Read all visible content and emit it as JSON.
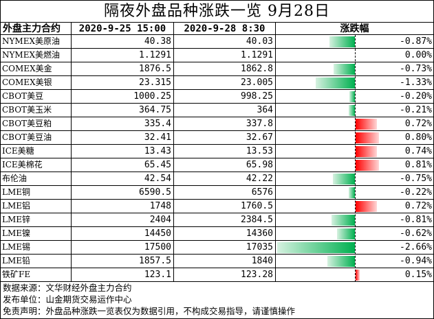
{
  "title": "隔夜外盘品种涨跌一览 9月28日",
  "headers": {
    "contract": "外盘主力合约",
    "time1": "2020-9-25 15:00",
    "time2": "2020-9-28 8:30",
    "change": "涨跌幅"
  },
  "colors": {
    "up": "#ff0000",
    "down": "#00b050"
  },
  "rows": [
    {
      "name": "NYMEX美原油",
      "v1": "40.38",
      "v2": "40.03",
      "pct": "-0.87%",
      "value": -0.87
    },
    {
      "name": "NYMEX美燃油",
      "v1": "1.1291",
      "v2": "1.1291",
      "pct": "0.00%",
      "value": 0.0
    },
    {
      "name": "COMEX美金",
      "v1": "1876.5",
      "v2": "1862.8",
      "pct": "-0.73%",
      "value": -0.73
    },
    {
      "name": "COMEX美银",
      "v1": "23.315",
      "v2": "23.005",
      "pct": "-1.33%",
      "value": -1.33
    },
    {
      "name": "CBOT美豆",
      "v1": "1000.25",
      "v2": "998.25",
      "pct": "-0.20%",
      "value": -0.2
    },
    {
      "name": "CBOT美玉米",
      "v1": "364.75",
      "v2": "364",
      "pct": "-0.21%",
      "value": -0.21
    },
    {
      "name": "CBOT美豆粕",
      "v1": "335.4",
      "v2": "337.8",
      "pct": "0.72%",
      "value": 0.72
    },
    {
      "name": "CBOT美豆油",
      "v1": "32.41",
      "v2": "32.67",
      "pct": "0.80%",
      "value": 0.8
    },
    {
      "name": "ICE美糖",
      "v1": "13.43",
      "v2": "13.53",
      "pct": "0.74%",
      "value": 0.74
    },
    {
      "name": "ICE美棉花",
      "v1": "65.45",
      "v2": "65.98",
      "pct": "0.81%",
      "value": 0.81
    },
    {
      "name": "布伦油",
      "v1": "42.54",
      "v2": "42.22",
      "pct": "-0.75%",
      "value": -0.75
    },
    {
      "name": "LME铜",
      "v1": "6590.5",
      "v2": "6576",
      "pct": "-0.22%",
      "value": -0.22
    },
    {
      "name": "LME铝",
      "v1": "1748",
      "v2": "1760.5",
      "pct": "0.72%",
      "value": 0.72
    },
    {
      "name": "LME锌",
      "v1": "2404",
      "v2": "2384.5",
      "pct": "-0.81%",
      "value": -0.81
    },
    {
      "name": "LME镍",
      "v1": "14450",
      "v2": "14360",
      "pct": "-0.62%",
      "value": -0.62
    },
    {
      "name": "LME锡",
      "v1": "17500",
      "v2": "17035",
      "pct": "-2.66%",
      "value": -2.66
    },
    {
      "name": "LME铅",
      "v1": "1857.5",
      "v2": "1840",
      "pct": "-0.94%",
      "value": -0.94
    },
    {
      "name": "铁矿FE",
      "v1": "123.1",
      "v2": "123.28",
      "pct": "0.15%",
      "value": 0.15
    }
  ],
  "footer": {
    "source": "数据来源：文华财经外盘主力合约",
    "publisher": "发布单位：山金期货交易运作中心",
    "disclaimer": "免责声明：外盘品种涨跌一览表仅为数据引用，不构成交易指导，请谨慎操作"
  }
}
